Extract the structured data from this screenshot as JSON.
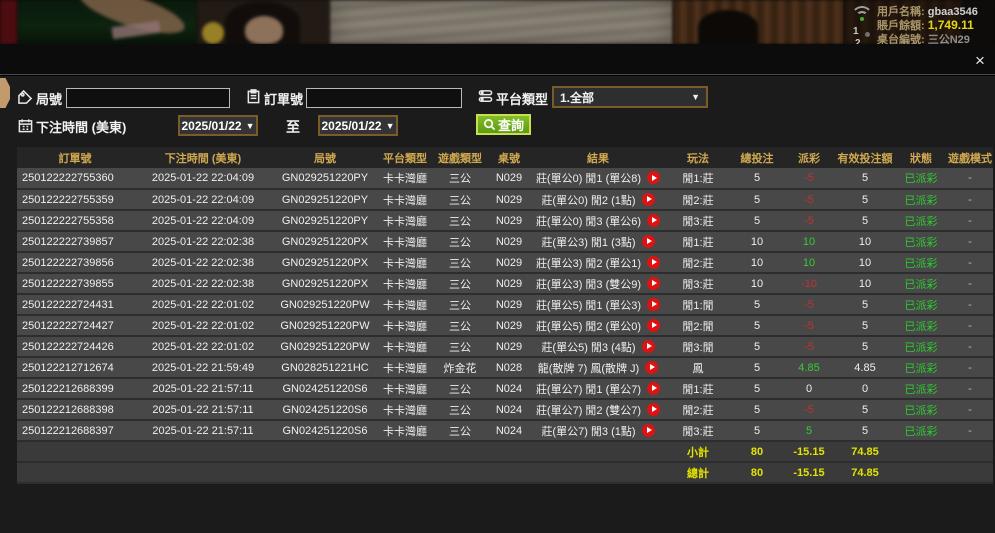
{
  "topbar": {
    "username_label": "用戶名稱:",
    "username": "gbaa3546",
    "balance_label": "賬戶餘額:",
    "balance": "1,749.11",
    "table_label": "桌台編號:",
    "table_no": "三公N29",
    "marker1": "1",
    "marker2": "2",
    "icons": {
      "wifi": "wifi-icon"
    }
  },
  "dialog": {
    "close_glyph": "×",
    "filters": {
      "round_label": "局號",
      "round_value": "",
      "order_label": "訂單號",
      "order_value": "",
      "platform_label": "平台類型",
      "platform_value": "1.全部",
      "bettime_label": "下注時間 (美東)",
      "date_from": "2025/01/22",
      "to_label": "至",
      "date_to": "2025/01/22",
      "search_label": "查詢",
      "dropdown_glyph": "▼",
      "icons": {
        "round": "tag-icon",
        "order": "clipboard-icon",
        "platform": "list-icon",
        "bettime": "calendar-icon",
        "search": "search-icon"
      }
    },
    "table": {
      "headers": [
        "訂單號",
        "下注時間 (美東)",
        "局號",
        "平台類型",
        "遊戲類型",
        "桌號",
        "結果",
        "玩法",
        "總投注",
        "派彩",
        "有效投注額",
        "狀態",
        "遊戲模式"
      ],
      "play_icon_name": "play-video-icon",
      "rows": [
        [
          "250122222755360",
          "2025-01-22 22:04:09",
          "GN029251220PY",
          "卡卡灣廳",
          "三公",
          "N029",
          "莊(單公0) 閒1 (單公8)",
          "閒1:莊",
          "5",
          "-5",
          "5",
          "已派彩",
          "-"
        ],
        [
          "250122222755359",
          "2025-01-22 22:04:09",
          "GN029251220PY",
          "卡卡灣廳",
          "三公",
          "N029",
          "莊(單公0) 閒2 (1點)",
          "閒2:莊",
          "5",
          "-5",
          "5",
          "已派彩",
          "-"
        ],
        [
          "250122222755358",
          "2025-01-22 22:04:09",
          "GN029251220PY",
          "卡卡灣廳",
          "三公",
          "N029",
          "莊(單公0) 閒3 (單公6)",
          "閒3:莊",
          "5",
          "-5",
          "5",
          "已派彩",
          "-"
        ],
        [
          "250122222739857",
          "2025-01-22 22:02:38",
          "GN029251220PX",
          "卡卡灣廳",
          "三公",
          "N029",
          "莊(單公3) 閒1 (3點)",
          "閒1:莊",
          "10",
          "10",
          "10",
          "已派彩",
          "-"
        ],
        [
          "250122222739856",
          "2025-01-22 22:02:38",
          "GN029251220PX",
          "卡卡灣廳",
          "三公",
          "N029",
          "莊(單公3) 閒2 (單公1)",
          "閒2:莊",
          "10",
          "10",
          "10",
          "已派彩",
          "-"
        ],
        [
          "250122222739855",
          "2025-01-22 22:02:38",
          "GN029251220PX",
          "卡卡灣廳",
          "三公",
          "N029",
          "莊(單公3) 閒3 (雙公9)",
          "閒3:莊",
          "10",
          "-10",
          "10",
          "已派彩",
          "-"
        ],
        [
          "250122222724431",
          "2025-01-22 22:01:02",
          "GN029251220PW",
          "卡卡灣廳",
          "三公",
          "N029",
          "莊(單公5) 閒1 (單公3)",
          "閒1:閒",
          "5",
          "-5",
          "5",
          "已派彩",
          "-"
        ],
        [
          "250122222724427",
          "2025-01-22 22:01:02",
          "GN029251220PW",
          "卡卡灣廳",
          "三公",
          "N029",
          "莊(單公5) 閒2 (單公0)",
          "閒2:閒",
          "5",
          "-5",
          "5",
          "已派彩",
          "-"
        ],
        [
          "250122222724426",
          "2025-01-22 22:01:02",
          "GN029251220PW",
          "卡卡灣廳",
          "三公",
          "N029",
          "莊(單公5) 閒3 (4點)",
          "閒3:閒",
          "5",
          "-5",
          "5",
          "已派彩",
          "-"
        ],
        [
          "250122212712674",
          "2025-01-22 21:59:49",
          "GN028251221HC",
          "卡卡灣廳",
          "炸金花",
          "N028",
          "龍(散牌 7) 鳳(散牌 J)",
          "鳳",
          "5",
          "4.85",
          "4.85",
          "已派彩",
          "-"
        ],
        [
          "250122212688399",
          "2025-01-22 21:57:11",
          "GN024251220S6",
          "卡卡灣廳",
          "三公",
          "N024",
          "莊(單公7) 閒1 (單公7)",
          "閒1:莊",
          "5",
          "0",
          "0",
          "已派彩",
          "-"
        ],
        [
          "250122212688398",
          "2025-01-22 21:57:11",
          "GN024251220S6",
          "卡卡灣廳",
          "三公",
          "N024",
          "莊(單公7) 閒2 (雙公7)",
          "閒2:莊",
          "5",
          "-5",
          "5",
          "已派彩",
          "-"
        ],
        [
          "250122212688397",
          "2025-01-22 21:57:11",
          "GN024251220S6",
          "卡卡灣廳",
          "三公",
          "N024",
          "莊(單公7) 閒3 (1點)",
          "閒3:莊",
          "5",
          "5",
          "5",
          "已派彩",
          "-"
        ]
      ],
      "subtotal": {
        "label": "小計",
        "total_bet": "80",
        "payout": "-15.15",
        "valid_bet": "74.85"
      },
      "grand_total": {
        "label": "總計",
        "total_bet": "80",
        "payout": "-15.15",
        "valid_bet": "74.85"
      }
    }
  },
  "colors": {
    "accent_gold_header": "#cfa84f",
    "summary_yellow": "#e3e300",
    "payout_negative": "#c03232",
    "payout_positive": "#35cc35",
    "status_green": "#2ecc2e",
    "select_border": "#7a5c28",
    "search_button_green": "#6fae17",
    "balance_yellow": "#e6d812",
    "play_icon_red": "#dd1212"
  }
}
